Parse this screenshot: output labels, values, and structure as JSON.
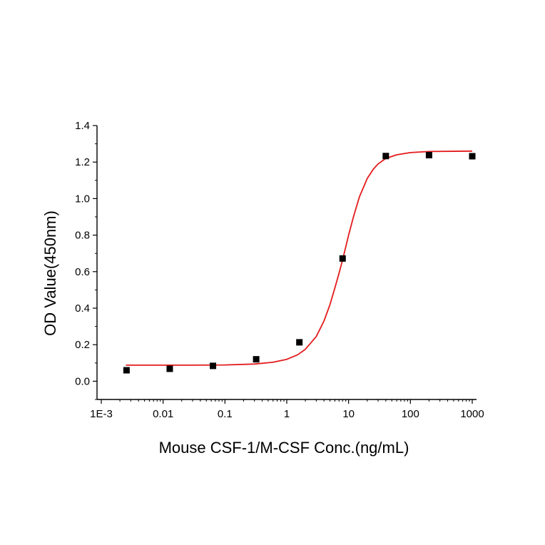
{
  "chart_data": {
    "type": "scatter",
    "title": "",
    "xlabel": "Mouse CSF-1/M-CSF Conc.(ng/mL)",
    "ylabel": "OD Value(450nm)",
    "x_scale": "log",
    "xlim": [
      0.001,
      1000
    ],
    "ylim": [
      -0.1,
      1.4
    ],
    "x_ticks": [
      0.001,
      0.01,
      0.1,
      1,
      10,
      100,
      1000
    ],
    "x_tick_labels": [
      "1E-3",
      "0.01",
      "0.1",
      "1",
      "10",
      "100",
      "1000"
    ],
    "y_ticks": [
      0.0,
      0.2,
      0.4,
      0.6,
      0.8,
      1.0,
      1.2,
      1.4
    ],
    "y_tick_labels": [
      "0.0",
      "0.2",
      "0.4",
      "0.6",
      "0.8",
      "1.0",
      "1.2",
      "1.4"
    ],
    "grid": false,
    "legend": "none",
    "series": [
      {
        "kind": "points",
        "marker": "square",
        "color": "#000000",
        "x": [
          0.00256,
          0.0128,
          0.064,
          0.32,
          1.6,
          8,
          40,
          200,
          1000
        ],
        "y": [
          0.06,
          0.068,
          0.084,
          0.12,
          0.213,
          0.672,
          1.233,
          1.238,
          1.232
        ]
      },
      {
        "kind": "fit-curve",
        "color": "#e31a1c",
        "x": [
          0.0025,
          0.01,
          0.03,
          0.1,
          0.3,
          0.6,
          1,
          1.5,
          2,
          3,
          4,
          5,
          6,
          7,
          8,
          10,
          12,
          15,
          20,
          25,
          30,
          40,
          60,
          100,
          200,
          1000
        ],
        "y": [
          0.088,
          0.088,
          0.088,
          0.089,
          0.094,
          0.104,
          0.12,
          0.145,
          0.175,
          0.245,
          0.33,
          0.42,
          0.51,
          0.59,
          0.665,
          0.8,
          0.9,
          1.01,
          1.11,
          1.16,
          1.19,
          1.22,
          1.24,
          1.252,
          1.258,
          1.26
        ]
      }
    ]
  }
}
